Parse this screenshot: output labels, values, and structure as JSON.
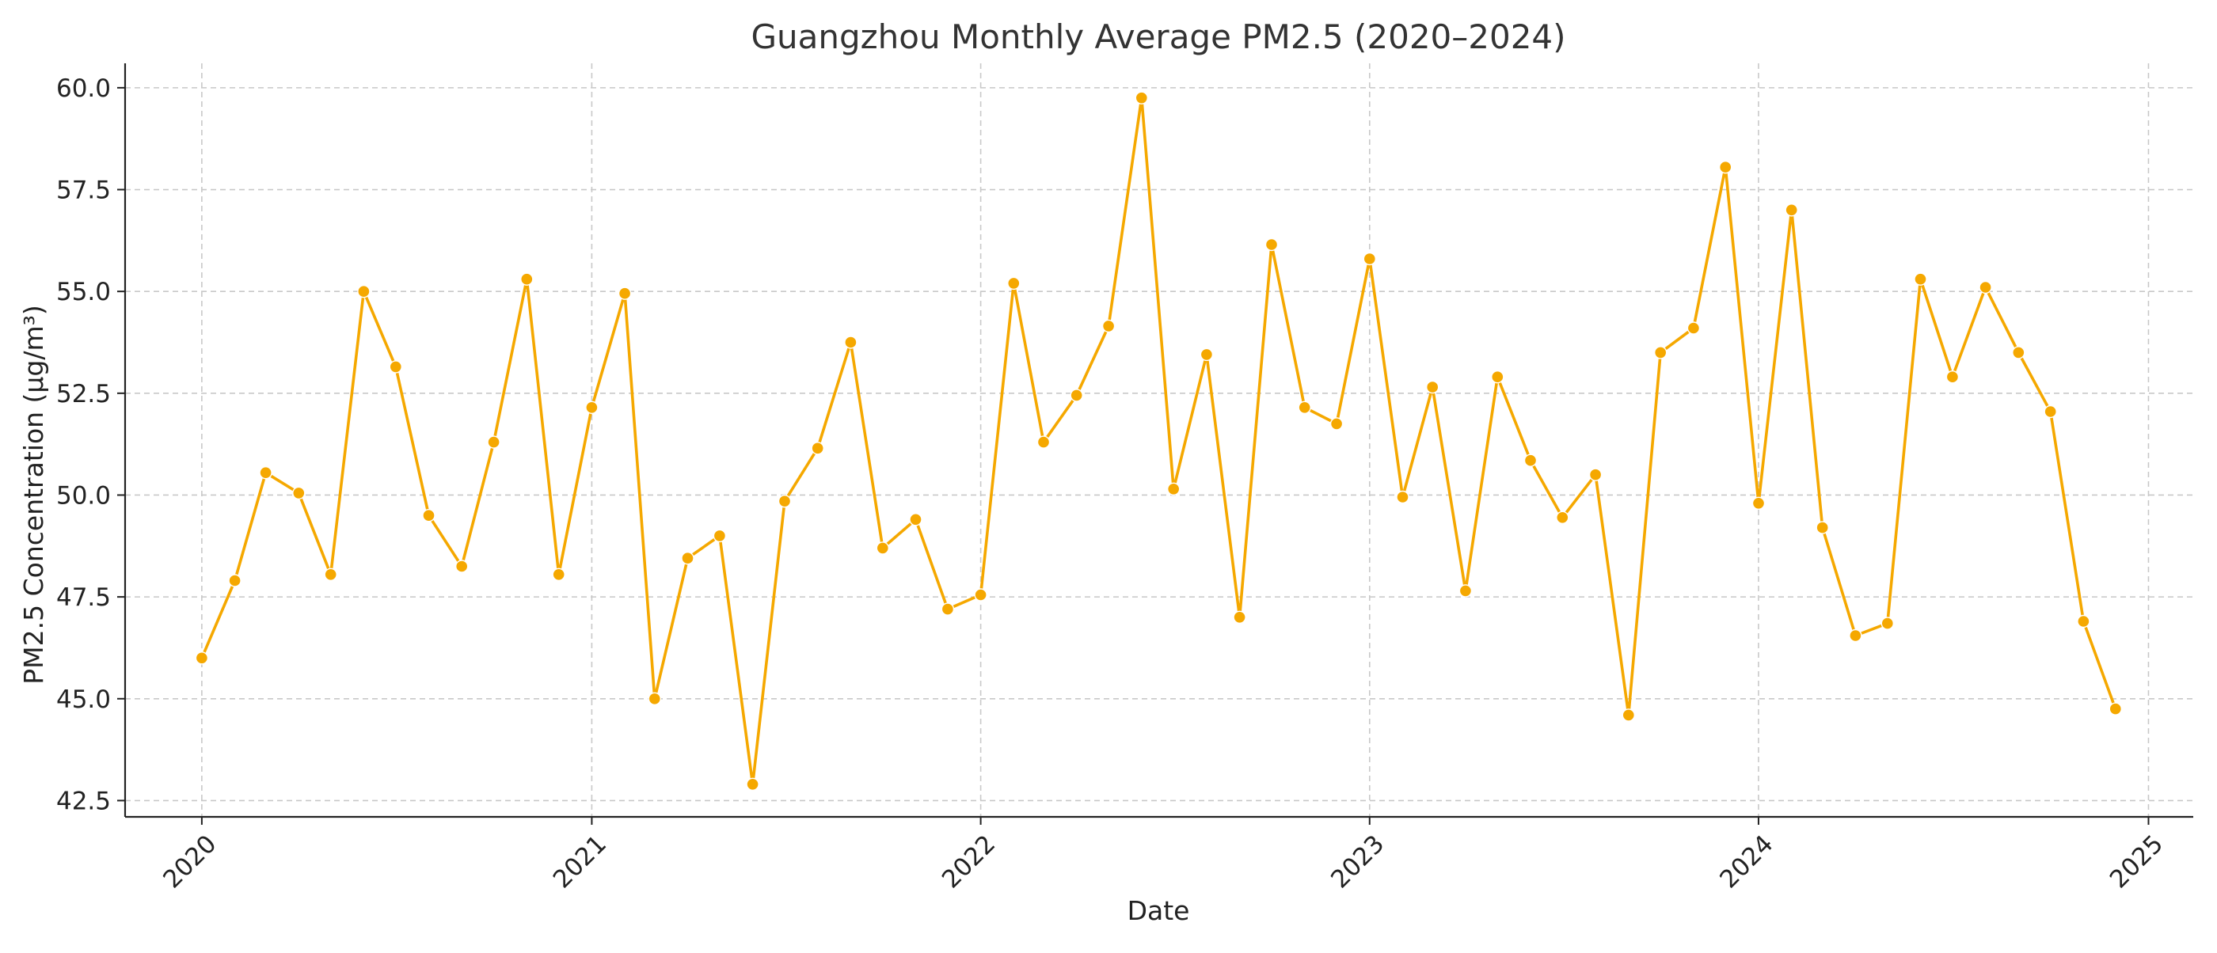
{
  "chart_data": {
    "type": "line",
    "title": "Guangzhou Monthly Average PM2.5 (2020–2024)",
    "xlabel": "Date",
    "ylabel": "PM2.5 Concentration (μg/m³)",
    "color": "#F5A800",
    "grid": true,
    "xlim": [
      "2019-10-21",
      "2025-02-12"
    ],
    "ylim": [
      42.1,
      60.6
    ],
    "x_ticks": [
      "2020-01-01",
      "2021-01-01",
      "2022-01-01",
      "2023-01-01",
      "2024-01-01",
      "2025-01-01"
    ],
    "x_tick_labels": [
      "2020",
      "2021",
      "2022",
      "2023",
      "2024",
      "2025"
    ],
    "y_ticks": [
      42.5,
      45.0,
      47.5,
      50.0,
      52.5,
      55.0,
      57.5,
      60.0
    ],
    "y_tick_labels": [
      "42.5",
      "45.0",
      "47.5",
      "50.0",
      "52.5",
      "55.0",
      "57.5",
      "60.0"
    ],
    "series": [
      {
        "x": [
          "2020-01-01",
          "2020-02-01",
          "2020-03-01",
          "2020-04-01",
          "2020-05-01",
          "2020-06-01",
          "2020-07-01",
          "2020-08-01",
          "2020-09-01",
          "2020-10-01",
          "2020-11-01",
          "2020-12-01",
          "2021-01-01",
          "2021-02-01",
          "2021-03-01",
          "2021-04-01",
          "2021-05-01",
          "2021-06-01",
          "2021-07-01",
          "2021-08-01",
          "2021-09-01",
          "2021-10-01",
          "2021-11-01",
          "2021-12-01",
          "2022-01-01",
          "2022-02-01",
          "2022-03-01",
          "2022-04-01",
          "2022-05-01",
          "2022-06-01",
          "2022-07-01",
          "2022-08-01",
          "2022-09-01",
          "2022-10-01",
          "2022-11-01",
          "2022-12-01",
          "2023-01-01",
          "2023-02-01",
          "2023-03-01",
          "2023-04-01",
          "2023-05-01",
          "2023-06-01",
          "2023-07-01",
          "2023-08-01",
          "2023-09-01",
          "2023-10-01",
          "2023-11-01",
          "2023-12-01",
          "2024-01-01",
          "2024-02-01",
          "2024-03-01",
          "2024-04-01",
          "2024-05-01",
          "2024-06-01",
          "2024-07-01",
          "2024-08-01",
          "2024-09-01",
          "2024-10-01",
          "2024-11-01",
          "2024-12-01"
        ],
        "values": [
          46.0,
          47.9,
          50.55,
          50.05,
          48.05,
          55.0,
          53.15,
          49.5,
          48.25,
          51.3,
          55.3,
          48.05,
          52.15,
          54.95,
          45.0,
          48.45,
          49.0,
          42.9,
          49.85,
          51.15,
          53.75,
          48.7,
          49.4,
          47.2,
          47.55,
          55.2,
          51.3,
          52.45,
          54.15,
          59.75,
          50.15,
          53.45,
          47.0,
          56.15,
          52.15,
          51.75,
          55.8,
          49.95,
          52.65,
          47.65,
          52.9,
          50.85,
          49.45,
          50.5,
          44.6,
          53.5,
          54.1,
          58.05,
          49.8,
          57.0,
          49.2,
          46.55,
          46.85,
          55.3,
          52.9,
          55.1,
          53.5,
          52.05,
          46.9,
          44.75
        ]
      }
    ]
  }
}
